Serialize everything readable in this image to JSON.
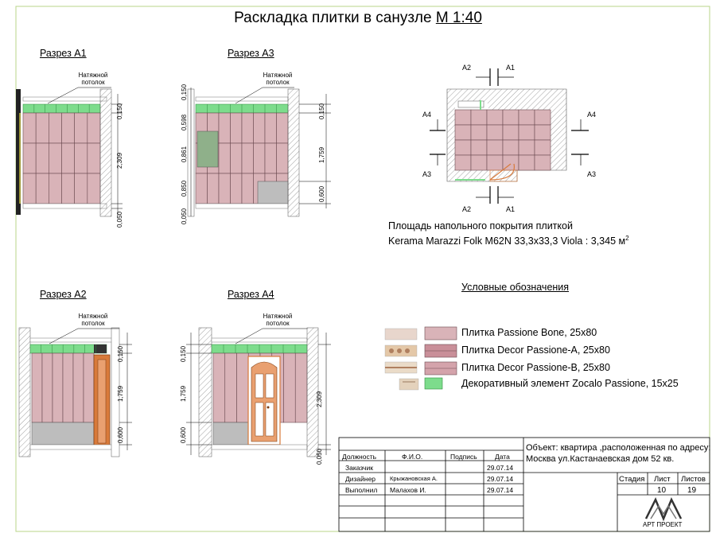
{
  "title": {
    "main": "Раскладка плитки в санузле",
    "scale": "М 1:40"
  },
  "sections": {
    "a1": {
      "title": "Разрез А1"
    },
    "a3": {
      "title": "Разрез А3"
    },
    "a2": {
      "title": "Разрез А2"
    },
    "a4": {
      "title": "Разрез А4"
    }
  },
  "ceiling_note_line1": "Натяжной",
  "ceiling_note_line2": "потолок",
  "dimensions": {
    "a1": [
      "0,150",
      "2,309",
      "0,050"
    ],
    "a3_left": [
      "0,150",
      "0,598",
      "0,861",
      "0,850",
      "0,050"
    ],
    "a3_right": [
      "0,150",
      "1,759",
      "0,600"
    ],
    "a2": [
      "0,150",
      "1,759",
      "0,600"
    ],
    "a4_left": [
      "0,150",
      "1,759",
      "0,600"
    ],
    "a4_right": [
      "2,309",
      "0,050"
    ]
  },
  "plan_marks": {
    "a1": "А1",
    "a2": "А2",
    "a3": "А3",
    "a4": "А4"
  },
  "floor_area": {
    "line1": "Площадь напольного покрытия плиткой",
    "line2": "Kerama Marazzi Folk M62N 33,3х33,3 Viola : 3,345 м",
    "sup": "2"
  },
  "legend": {
    "title": "Условные обозначения",
    "items": [
      {
        "label": "Плитка Passione Bone, 25х80",
        "color": "#d9b3b8"
      },
      {
        "label": "Плитка Decor Passione-A, 25х80",
        "color": "#c98f99"
      },
      {
        "label": "Плитка Decor Passione-B, 25х80",
        "color": "#d4a3ab"
      },
      {
        "label": "Декоративный элемент Zocalo Passione, 15х25",
        "color": "#7ddc8c"
      }
    ]
  },
  "title_block": {
    "headers": {
      "position": "Должность",
      "name": "Ф.И.О.",
      "signature": "Подпись",
      "date": "Дата"
    },
    "rows": [
      {
        "position": "Заказчик",
        "name": "",
        "date": "29.07.14"
      },
      {
        "position": "Дизайнер",
        "name": "Крыжановская А.",
        "date": "29.07.14"
      },
      {
        "position": "Выполнил",
        "name": "Малахов И.",
        "date": "29.07.14"
      }
    ],
    "object_line1": "Объект: квартира ,расположенная по адресу:",
    "object_line2": "Москва ул.Кастанаевская дом 52 кв.",
    "stage_label": "Стадия",
    "sheet_label": "Лист",
    "sheets_label": "Листов",
    "stage": "",
    "sheet": "10",
    "sheets": "19",
    "company": "АРТ ПРОЕКТ"
  },
  "colors": {
    "tile": "#d9b3b8",
    "tile_stroke": "#6b4a50",
    "border_green": "#7ddc8c",
    "floor_grey": "#bdbdbd",
    "door": "#d87a3a"
  }
}
